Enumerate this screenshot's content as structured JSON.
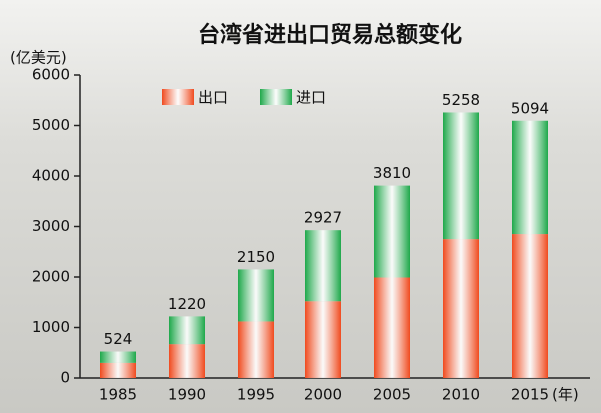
{
  "chart_data": {
    "type": "bar",
    "stacked": true,
    "title": "台湾省进出口贸易总额变化",
    "y_label": "(亿美元)",
    "x_unit": "(年)",
    "categories": [
      "1985",
      "1990",
      "1995",
      "2000",
      "2005",
      "2010",
      "2015"
    ],
    "series": [
      {
        "name": "出口",
        "color": "#f04a1e",
        "values": [
          300,
          670,
          1120,
          1520,
          1990,
          2750,
          2850
        ]
      },
      {
        "name": "进口",
        "color": "#1ea84a",
        "values": [
          224,
          550,
          1030,
          1407,
          1820,
          2508,
          2244
        ]
      }
    ],
    "totals": [
      524,
      1220,
      2150,
      2927,
      3810,
      5258,
      5094
    ],
    "ylim": [
      0,
      6000
    ],
    "yticks": [
      0,
      1000,
      2000,
      3000,
      4000,
      5000,
      6000
    ]
  }
}
